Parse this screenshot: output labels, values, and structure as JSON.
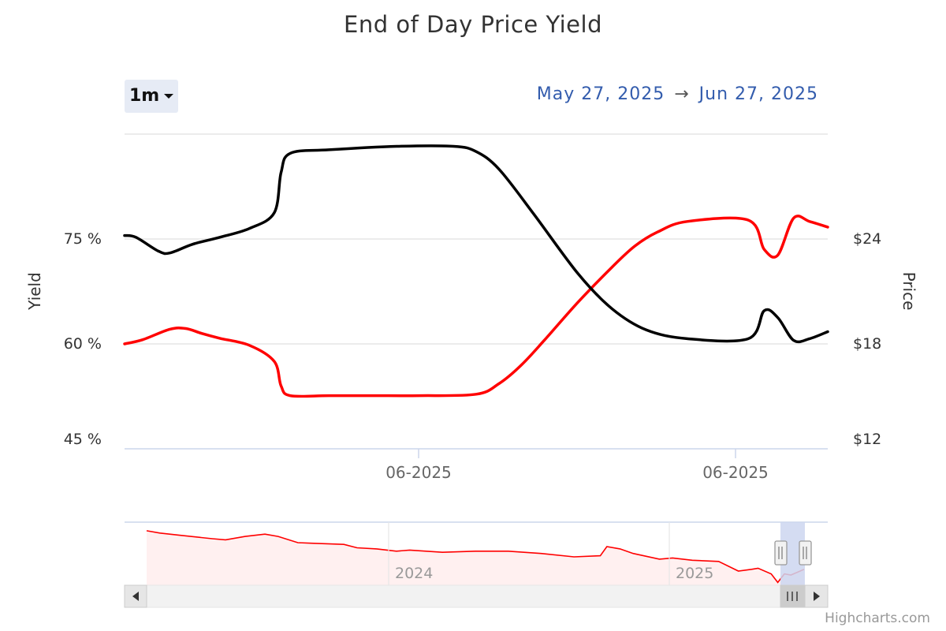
{
  "title": "End of Day Price Yield",
  "range_selector": {
    "selected": "1m"
  },
  "date_range": {
    "from": "May 27, 2025",
    "arrow": "→",
    "to": "Jun 27, 2025"
  },
  "credit": "Highcharts.com",
  "colors": {
    "yield": "#ff0000",
    "price": "#000000",
    "grid": "#e6e6e6",
    "axis": "#ccd6eb",
    "navigator_mask": "#ccd6f0"
  },
  "chart_data": {
    "type": "line",
    "title": "End of Day Price Yield",
    "y_left": {
      "label": "Yield",
      "ticks": [
        "45 %",
        "60 %",
        "75 %"
      ],
      "min": 45,
      "max": 90
    },
    "y_right": {
      "label": "Price",
      "ticks": [
        "$12",
        "$18",
        "$24"
      ],
      "min": 12,
      "max": 30
    },
    "x_ticks": [
      "06-2025",
      "06-2025"
    ],
    "x_range": [
      "2025-05-27",
      "2025-06-27"
    ],
    "series": [
      {
        "name": "Yield",
        "axis": "left",
        "color": "#ff0000",
        "x": [
          0,
          0.8,
          2,
          2.7,
          3.4,
          4.2,
          5.5,
          6.6,
          6.9,
          7.3,
          9,
          11,
          13,
          15.5,
          16.5,
          17.5,
          18.5,
          20,
          21.5,
          22.5,
          23.5,
          24.8,
          27.5,
          28.2,
          28.8,
          29.5,
          30.2,
          31
        ],
        "y": [
          60,
          60.6,
          62.1,
          62.2,
          61.5,
          60.8,
          59.8,
          57.5,
          54,
          52.6,
          52.6,
          52.6,
          52.6,
          52.8,
          54.3,
          57,
          60.5,
          66,
          71,
          74,
          76,
          77.5,
          77.7,
          73.5,
          72.7,
          78,
          77.5,
          76.7
        ]
      },
      {
        "name": "Price",
        "axis": "right",
        "color": "#000000",
        "x": [
          0,
          0.5,
          1.5,
          2,
          3,
          4.2,
          5.5,
          6.6,
          6.9,
          7.3,
          9,
          12,
          14.5,
          15.5,
          16.5,
          18,
          20,
          21.5,
          23,
          24.8,
          27.5,
          28.2,
          28.8,
          29.5,
          30.2,
          31
        ],
        "y": [
          24.2,
          24.1,
          23.3,
          23.2,
          23.7,
          24.1,
          24.6,
          25.5,
          27.8,
          28.9,
          29.1,
          29.3,
          29.3,
          29,
          28,
          25.5,
          22,
          20,
          18.8,
          18.3,
          18.3,
          19.9,
          19.5,
          18.2,
          18.3,
          18.7
        ]
      }
    ],
    "navigator": {
      "x_ticks": [
        "2024",
        "2025"
      ],
      "series": {
        "name": "Yield",
        "color": "#ff0000",
        "x": [
          0,
          0.02,
          0.05,
          0.1,
          0.12,
          0.15,
          0.18,
          0.2,
          0.23,
          0.25,
          0.3,
          0.32,
          0.35,
          0.38,
          0.4,
          0.45,
          0.5,
          0.55,
          0.6,
          0.65,
          0.69,
          0.7,
          0.72,
          0.74,
          0.78,
          0.8,
          0.83,
          0.87,
          0.9,
          0.92,
          0.93,
          0.95,
          0.96,
          0.97,
          0.98,
          1
        ],
        "y": [
          0.96,
          0.92,
          0.88,
          0.82,
          0.8,
          0.86,
          0.9,
          0.86,
          0.75,
          0.74,
          0.72,
          0.66,
          0.64,
          0.6,
          0.62,
          0.58,
          0.6,
          0.6,
          0.56,
          0.5,
          0.52,
          0.68,
          0.64,
          0.56,
          0.46,
          0.48,
          0.44,
          0.42,
          0.25,
          0.28,
          0.3,
          0.2,
          0.05,
          0.2,
          0.18,
          0.28
        ]
      }
    }
  }
}
